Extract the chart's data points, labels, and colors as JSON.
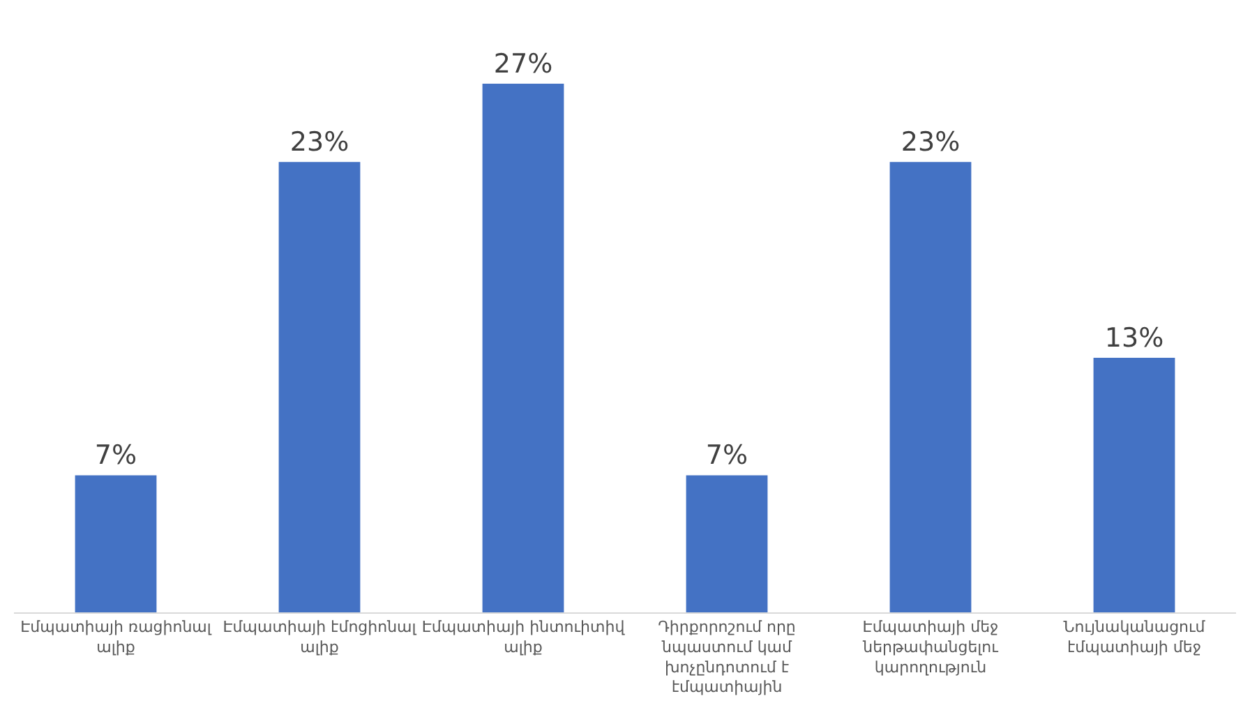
{
  "chart_data": {
    "type": "bar",
    "categories": [
      "Էմպատիայի ռացիոնալ ալիք",
      "Էմպատիայի էմոցիոնալ ալիք",
      "Էմպատիայի ինտուիտիվ ալիք",
      "Դիրքորոշում որը նպաստում կամ խոչընդոտում է էմպատիային",
      "Էմպատիայի մեջ ներթափանցելու կարողություն",
      "Նույնականացում էմպատիայի մեջ"
    ],
    "values": [
      7,
      23,
      27,
      7,
      23,
      13
    ],
    "value_labels": [
      "7%",
      "23%",
      "27%",
      "7%",
      "23%",
      "13%"
    ],
    "color": "#4472c4"
  }
}
